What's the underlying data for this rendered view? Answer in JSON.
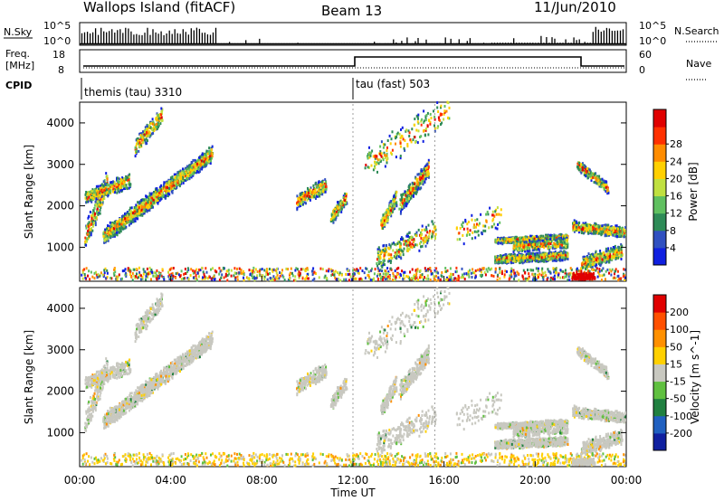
{
  "header": {
    "site_title": "Wallops Island (fitACF)",
    "beam": "Beam 13",
    "date": "11/Jun/2010"
  },
  "panels": {
    "nsky_label": "N.Sky",
    "nsky_ticks": [
      "10^5",
      "10^0"
    ],
    "nsearch_label": "N.Search",
    "nsearch_ticks": [
      "10^5",
      "10^0"
    ],
    "freq_label_1": "Freq.",
    "freq_label_2": "[MHz]",
    "freq_ticks": [
      "18",
      "8"
    ],
    "nave_label": "Nave",
    "nave_ticks": [
      "60",
      "0"
    ],
    "cpid_label": "CPID",
    "cpid_1": "themis (tau) 3310",
    "cpid_2": "tau (fast) 503"
  },
  "chart_data": [
    {
      "type": "heatmap",
      "name": "power",
      "ylabel": "Slant Range [km]",
      "yticks": [
        "1000",
        "2000",
        "3000",
        "4000"
      ],
      "ylim": [
        180,
        4500
      ],
      "colorbar_label": "Power [dB]",
      "colorbar_ticks": [
        "4",
        "8",
        "12",
        "16",
        "20",
        "24",
        "28"
      ],
      "colorbar_colors": [
        "#1020e0",
        "#3050c0",
        "#2e8b57",
        "#60c060",
        "#c0e040",
        "#ffd000",
        "#ff8c00",
        "#ff3000",
        "#e00000"
      ]
    },
    {
      "type": "heatmap",
      "name": "velocity",
      "ylabel": "Slant Range [km]",
      "yticks": [
        "1000",
        "2000",
        "3000",
        "4000"
      ],
      "ylim": [
        180,
        4500
      ],
      "colorbar_label": "Velocity [m s^-1]",
      "colorbar_ticks": [
        "200",
        "100",
        "50",
        "15",
        "-15",
        "-50",
        "-100",
        "-200"
      ],
      "colorbar_colors": [
        "#1020a0",
        "#2060c0",
        "#208040",
        "#60c040",
        "#c8c8c0",
        "#ffd000",
        "#ff9000",
        "#ff5000",
        "#e00000"
      ]
    }
  ],
  "xaxis": {
    "label": "Time UT",
    "ticks": [
      "00:00",
      "04:00",
      "08:00",
      "12:00",
      "16:00",
      "20:00",
      "00:00"
    ]
  }
}
